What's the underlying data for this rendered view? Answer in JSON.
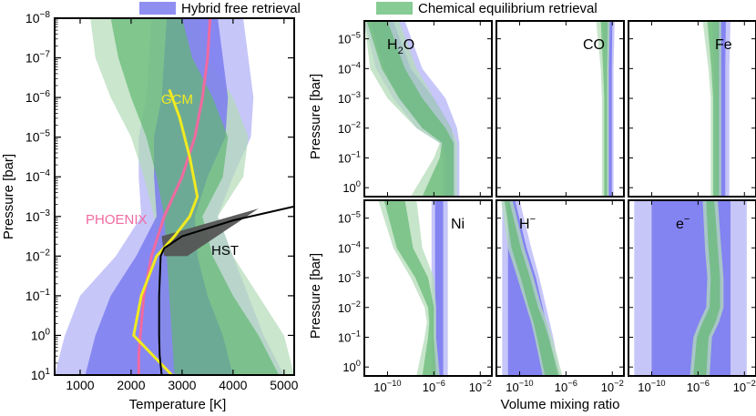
{
  "legend": {
    "entries": [
      {
        "label": "Hybrid free retrieval",
        "color": "#7b7bf0"
      },
      {
        "label": "Chemical equilibrium retrieval",
        "color": "#72c283"
      }
    ]
  },
  "colors": {
    "blue_outer": "#c0c0f8",
    "blue_inner": "#7b7bf0",
    "green_outer": "#b4dcb8",
    "green_inner": "#62b872",
    "overlap": "#4f8f9a",
    "phoenix": "#f06aa0",
    "gcm": "#f0ea20",
    "hst": "#555555"
  },
  "chart_data": [
    {
      "type": "line",
      "panel": "temperature-pressure",
      "xlabel": "Temperature [K]",
      "ylabel": "Pressure [bar]",
      "xlim": [
        500,
        5200
      ],
      "ylim_log10": [
        1,
        -8
      ],
      "x_ticks": [
        "1000",
        "2000",
        "3000",
        "4000",
        "5000"
      ],
      "y_ticks": [
        {
          "base": "10",
          "exp": "1"
        },
        {
          "base": "10",
          "exp": "0"
        },
        {
          "base": "10",
          "exp": "−1"
        },
        {
          "base": "10",
          "exp": "−2"
        },
        {
          "base": "10",
          "exp": "−3"
        },
        {
          "base": "10",
          "exp": "−4"
        },
        {
          "base": "10",
          "exp": "−5"
        },
        {
          "base": "10",
          "exp": "−6"
        },
        {
          "base": "10",
          "exp": "−7"
        },
        {
          "base": "10",
          "exp": "−8"
        }
      ],
      "annotations": {
        "phoenix": "PHOENIX",
        "gcm": "GCM",
        "hst": "HST"
      },
      "logP": [
        -8,
        -7,
        -6,
        -5,
        -4,
        -3,
        -2,
        -1,
        0,
        1
      ],
      "bands": {
        "blue_outer_lo": [
          2400,
          2350,
          2300,
          2150,
          2150,
          2200,
          1700,
          1000,
          700,
          500
        ],
        "blue_outer_hi": [
          4200,
          4300,
          4400,
          4350,
          4000,
          3700,
          4000,
          4300,
          4600,
          5000
        ],
        "blue_inner_lo": [
          2700,
          2650,
          2600,
          2450,
          2450,
          2500,
          2100,
          1600,
          1300,
          1100
        ],
        "blue_inner_hi": [
          3700,
          3800,
          3900,
          3850,
          3500,
          3250,
          3300,
          3500,
          3800,
          4000
        ],
        "green_outer_lo": [
          1200,
          1300,
          1600,
          2000,
          2250,
          2450,
          2500,
          2500,
          2550,
          2550
        ],
        "green_outer_hi": [
          3300,
          3500,
          4000,
          4300,
          4200,
          3700,
          4000,
          4500,
          5000,
          5200
        ],
        "green_inner_lo": [
          1600,
          1750,
          2000,
          2300,
          2500,
          2650,
          2700,
          2750,
          2800,
          2850
        ],
        "green_inner_hi": [
          3000,
          3200,
          3600,
          3900,
          3800,
          3400,
          3600,
          4000,
          4500,
          4900
        ]
      },
      "series": [
        {
          "name": "PHOENIX",
          "x": [
            3550,
            3500,
            3400,
            3250,
            3000,
            2650,
            2400,
            2250,
            2180,
            2150,
            2150
          ],
          "logP": [
            -8,
            -7,
            -6,
            -5,
            -4,
            -3,
            -2,
            -1,
            0,
            0.5,
            1
          ]
        },
        {
          "name": "GCM",
          "x": [
            2750,
            2950,
            3150,
            3300,
            3150,
            2850,
            2500,
            2200,
            2050,
            2500,
            2800
          ],
          "logP": [
            -6.2,
            -5.5,
            -4.5,
            -3.5,
            -3,
            -2.5,
            -2,
            -1,
            0,
            0.6,
            1
          ]
        },
        {
          "name": "T-P profile",
          "x": [
            5200,
            4000,
            3000,
            2650,
            2580,
            2550,
            2550,
            2560,
            2600
          ],
          "logP": [
            -3.25,
            -2.9,
            -2.5,
            -2.2,
            -2,
            -1,
            0,
            0.5,
            1
          ]
        }
      ]
    },
    {
      "type": "area",
      "panel": "abundances",
      "xlabel": "Volume mixing ratio",
      "ylabel": "Pressure [bar]",
      "xlim_log10": [
        -12,
        -1
      ],
      "ylim_log10": [
        0.3,
        -5.6
      ],
      "x_ticks": [
        {
          "base": "10",
          "exp": "−10"
        },
        {
          "base": "10",
          "exp": "−6"
        },
        {
          "base": "10",
          "exp": "−2"
        }
      ],
      "y_ticks": [
        {
          "base": "10",
          "exp": "−5"
        },
        {
          "base": "10",
          "exp": "−4"
        },
        {
          "base": "10",
          "exp": "−3"
        },
        {
          "base": "10",
          "exp": "−2"
        },
        {
          "base": "10",
          "exp": "−1"
        },
        {
          "base": "10",
          "exp": "0"
        }
      ],
      "species_labels": [
        {
          "base": "H",
          "sub": "2",
          "rest": "O"
        },
        {
          "base": "CO",
          "sub": "",
          "rest": ""
        },
        {
          "base": "Fe",
          "sub": "",
          "rest": ""
        },
        {
          "base": "Ni",
          "sub": "",
          "rest": ""
        },
        {
          "base": "H",
          "sup": "−",
          "rest": ""
        },
        {
          "base": "e",
          "sup": "−",
          "rest": ""
        }
      ],
      "logP": [
        -5.6,
        -4,
        -3,
        -2,
        -1.5,
        -1,
        0.3
      ],
      "species": [
        {
          "name": "H2O",
          "blue_outer": [
            [
              -12,
              -8.5
            ],
            [
              -11,
              -7
            ],
            [
              -9.5,
              -5
            ],
            [
              -7.5,
              -4
            ],
            [
              -5.5,
              -3.8
            ],
            [
              -5.3,
              -3.8
            ],
            [
              -5.3,
              -3.8
            ]
          ],
          "blue_inner": [
            [
              -11.5,
              -9.5
            ],
            [
              -10.3,
              -8
            ],
            [
              -9,
              -6
            ],
            [
              -7,
              -4.5
            ],
            [
              -5.2,
              -4.2
            ],
            [
              -5,
              -4.2
            ],
            [
              -5,
              -4.2
            ]
          ],
          "green_outer": [
            [
              -12,
              -9
            ],
            [
              -11.5,
              -7.5
            ],
            [
              -10,
              -6
            ],
            [
              -7.5,
              -4.5
            ],
            [
              -5.5,
              -4
            ],
            [
              -6,
              -4
            ],
            [
              -8,
              -4
            ]
          ],
          "green_inner": [
            [
              -11.8,
              -10
            ],
            [
              -10.5,
              -8.5
            ],
            [
              -9,
              -7
            ],
            [
              -7,
              -5
            ],
            [
              -5.3,
              -4.3
            ],
            [
              -5.5,
              -4.3
            ],
            [
              -7,
              -4.3
            ]
          ]
        },
        {
          "name": "CO",
          "blue_outer": [
            [
              -2.8,
              -1.8
            ],
            [
              -2.6,
              -1.9
            ],
            [
              -2.6,
              -1.9
            ],
            [
              -2.6,
              -1.9
            ],
            [
              -2.6,
              -1.9
            ],
            [
              -2.6,
              -1.9
            ],
            [
              -2.6,
              -1.9
            ]
          ],
          "blue_inner": [
            [
              -2.4,
              -2.0
            ],
            [
              -2.35,
              -2.05
            ],
            [
              -2.35,
              -2.05
            ],
            [
              -2.35,
              -2.05
            ],
            [
              -2.35,
              -2.05
            ],
            [
              -2.35,
              -2.05
            ],
            [
              -2.35,
              -2.05
            ]
          ],
          "green_outer": [
            [
              -3.4,
              -2.2
            ],
            [
              -3.0,
              -2.3
            ],
            [
              -2.9,
              -2.3
            ],
            [
              -2.9,
              -2.3
            ],
            [
              -2.9,
              -2.3
            ],
            [
              -2.9,
              -2.3
            ],
            [
              -2.9,
              -2.3
            ]
          ],
          "green_inner": [
            [
              -3.0,
              -2.4
            ],
            [
              -2.8,
              -2.45
            ],
            [
              -2.7,
              -2.45
            ],
            [
              -2.7,
              -2.45
            ],
            [
              -2.7,
              -2.45
            ],
            [
              -2.7,
              -2.45
            ],
            [
              -2.7,
              -2.45
            ]
          ]
        },
        {
          "name": "Fe",
          "blue_outer": [
            [
              -4.8,
              -3.2
            ],
            [
              -4.6,
              -3.3
            ],
            [
              -4.6,
              -3.3
            ],
            [
              -4.6,
              -3.3
            ],
            [
              -4.6,
              -3.3
            ],
            [
              -4.6,
              -3.3
            ],
            [
              -4.6,
              -3.3
            ]
          ],
          "blue_inner": [
            [
              -4.4,
              -3.6
            ],
            [
              -4.3,
              -3.65
            ],
            [
              -4.3,
              -3.65
            ],
            [
              -4.3,
              -3.65
            ],
            [
              -4.3,
              -3.65
            ],
            [
              -4.3,
              -3.65
            ],
            [
              -4.3,
              -3.65
            ]
          ],
          "green_outer": [
            [
              -5.6,
              -4.0
            ],
            [
              -5.1,
              -4.0
            ],
            [
              -4.9,
              -4.0
            ],
            [
              -4.9,
              -4.0
            ],
            [
              -4.9,
              -4.0
            ],
            [
              -4.9,
              -4.0
            ],
            [
              -4.9,
              -4.0
            ]
          ],
          "green_inner": [
            [
              -5.2,
              -4.2
            ],
            [
              -4.85,
              -4.2
            ],
            [
              -4.7,
              -4.2
            ],
            [
              -4.7,
              -4.2
            ],
            [
              -4.7,
              -4.2
            ],
            [
              -4.7,
              -4.2
            ],
            [
              -4.7,
              -4.2
            ]
          ]
        },
        {
          "name": "Ni",
          "blue_outer": [
            [
              -6.2,
              -4.8
            ],
            [
              -6.2,
              -4.8
            ],
            [
              -6.2,
              -4.8
            ],
            [
              -6.2,
              -4.8
            ],
            [
              -6.2,
              -4.8
            ],
            [
              -6.2,
              -4.8
            ],
            [
              -6.2,
              -4.8
            ]
          ],
          "blue_inner": [
            [
              -5.9,
              -5.2
            ],
            [
              -5.9,
              -5.2
            ],
            [
              -5.9,
              -5.2
            ],
            [
              -5.9,
              -5.2
            ],
            [
              -5.9,
              -5.2
            ],
            [
              -5.9,
              -5.2
            ],
            [
              -5.9,
              -5.2
            ]
          ],
          "green_outer": [
            [
              -10.8,
              -7.5
            ],
            [
              -9.5,
              -7
            ],
            [
              -8,
              -6
            ],
            [
              -6.8,
              -5.8
            ],
            [
              -6.6,
              -5.8
            ],
            [
              -6.8,
              -5.8
            ],
            [
              -7.5,
              -5.5
            ]
          ],
          "green_inner": [
            [
              -10.3,
              -8.5
            ],
            [
              -9.2,
              -7.8
            ],
            [
              -7.6,
              -6.5
            ],
            [
              -6.5,
              -6
            ],
            [
              -6.4,
              -6
            ],
            [
              -6.5,
              -6
            ],
            [
              -7,
              -5.8
            ]
          ]
        },
        {
          "name": "H-",
          "blue_outer": [
            [
              -11.5,
              -10.0
            ],
            [
              -11.5,
              -9.0
            ],
            [
              -11.5,
              -8.3
            ],
            [
              -11.5,
              -7.7
            ],
            [
              -11.5,
              -7.4
            ],
            [
              -11.5,
              -7.1
            ],
            [
              -11.5,
              -6.5
            ]
          ],
          "blue_inner": [
            [
              -11,
              -10.4
            ],
            [
              -11,
              -9.4
            ],
            [
              -11,
              -8.6
            ],
            [
              -11,
              -8.0
            ],
            [
              -11,
              -7.7
            ],
            [
              -11,
              -7.4
            ],
            [
              -11,
              -6.8
            ]
          ],
          "green_outer": [
            [
              -11.6,
              -10.6
            ],
            [
              -11.0,
              -9.6
            ],
            [
              -10.2,
              -8.8
            ],
            [
              -9.4,
              -8.1
            ],
            [
              -9.0,
              -7.6
            ],
            [
              -8.7,
              -7.2
            ],
            [
              -8.0,
              -6.3
            ]
          ],
          "green_inner": [
            [
              -11.3,
              -10.9
            ],
            [
              -10.7,
              -9.9
            ],
            [
              -9.9,
              -9.1
            ],
            [
              -9.2,
              -8.4
            ],
            [
              -8.8,
              -7.9
            ],
            [
              -8.5,
              -7.5
            ],
            [
              -7.8,
              -6.6
            ]
          ]
        },
        {
          "name": "e-",
          "blue_outer": [
            [
              -11.5,
              -1.8
            ],
            [
              -11.5,
              -1.8
            ],
            [
              -11.5,
              -1.8
            ],
            [
              -11.5,
              -1.8
            ],
            [
              -11.5,
              -1.8
            ],
            [
              -11.5,
              -1.8
            ],
            [
              -11.5,
              -1.8
            ]
          ],
          "blue_inner": [
            [
              -10.0,
              -3.2
            ],
            [
              -10.0,
              -3.2
            ],
            [
              -10.0,
              -3.2
            ],
            [
              -10.0,
              -3.2
            ],
            [
              -10.0,
              -3.2
            ],
            [
              -10.0,
              -3.2
            ],
            [
              -10.0,
              -3.2
            ]
          ],
          "green_outer": [
            [
              -5.6,
              -4.3
            ],
            [
              -5.4,
              -4.0
            ],
            [
              -5.2,
              -3.8
            ],
            [
              -5.3,
              -3.8
            ],
            [
              -5.9,
              -4.2
            ],
            [
              -6.4,
              -4.8
            ],
            [
              -6.7,
              -5.0
            ]
          ],
          "green_inner": [
            [
              -5.3,
              -4.6
            ],
            [
              -5.1,
              -4.3
            ],
            [
              -4.9,
              -4.1
            ],
            [
              -5.0,
              -4.1
            ],
            [
              -5.6,
              -4.5
            ],
            [
              -6.1,
              -5.1
            ],
            [
              -6.4,
              -5.3
            ]
          ]
        }
      ]
    }
  ]
}
